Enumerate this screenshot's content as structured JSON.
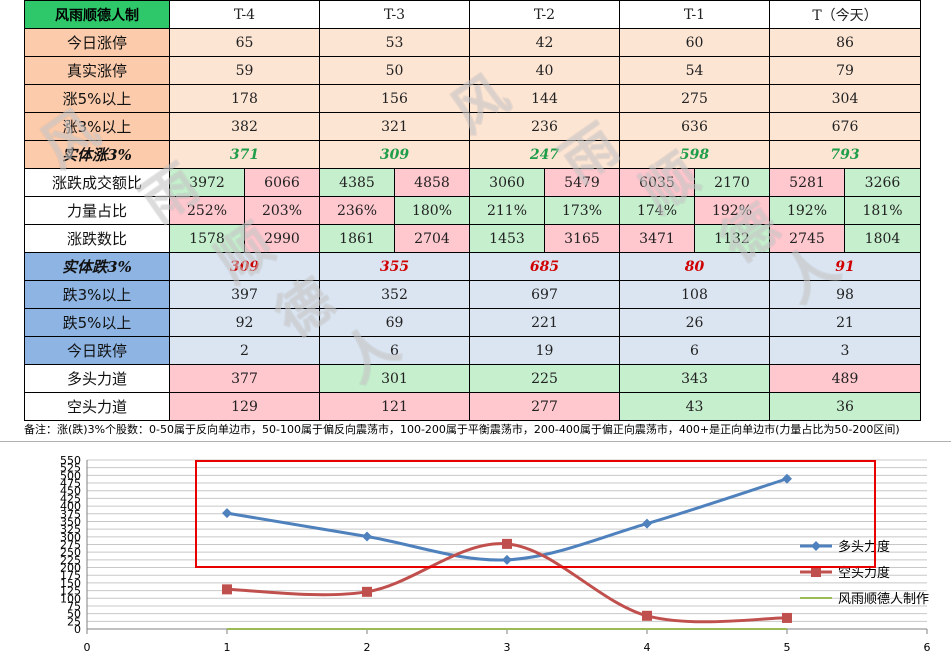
{
  "sheet": {
    "corner": "风雨顺德人制",
    "columns": [
      "T-4",
      "T-3",
      "T-2",
      "T-1",
      "T（今天）"
    ],
    "rows": {
      "zt": {
        "label": "今日涨停",
        "values": [
          "65",
          "53",
          "42",
          "60",
          "86"
        ]
      },
      "real_zt": {
        "label": "真实涨停",
        "values": [
          "59",
          "50",
          "40",
          "54",
          "79"
        ]
      },
      "up5": {
        "label": "涨5%以上",
        "values": [
          "178",
          "156",
          "144",
          "275",
          "304"
        ]
      },
      "up3": {
        "label": "涨3%以上",
        "values": [
          "382",
          "321",
          "236",
          "636",
          "676"
        ]
      },
      "sz3": {
        "label": "实体涨3%",
        "values": [
          "371",
          "309",
          "247",
          "598",
          "793"
        ]
      },
      "amount": {
        "label": "涨跌成交额比",
        "values": [
          [
            "3972",
            "6066"
          ],
          [
            "4385",
            "4858"
          ],
          [
            "3060",
            "5479"
          ],
          [
            "6035",
            "2170"
          ],
          [
            "5281",
            "3266"
          ]
        ]
      },
      "power": {
        "label": "力量占比",
        "values": [
          [
            "252%",
            "203%"
          ],
          [
            "236%",
            "180%"
          ],
          [
            "211%",
            "173%"
          ],
          [
            "174%",
            "192%"
          ],
          [
            "192%",
            "181%"
          ]
        ]
      },
      "count": {
        "label": "涨跌数比",
        "values": [
          [
            "1578",
            "2990"
          ],
          [
            "1861",
            "2704"
          ],
          [
            "1453",
            "3165"
          ],
          [
            "3471",
            "1132"
          ],
          [
            "2745",
            "1804"
          ]
        ]
      },
      "sd3": {
        "label": "实体跌3%",
        "values": [
          "309",
          "355",
          "685",
          "80",
          "91"
        ]
      },
      "down3": {
        "label": "跌3%以上",
        "values": [
          "397",
          "352",
          "697",
          "108",
          "98"
        ]
      },
      "down5": {
        "label": "跌5%以上",
        "values": [
          "92",
          "69",
          "221",
          "26",
          "21"
        ]
      },
      "dt": {
        "label": "今日跌停",
        "values": [
          "2",
          "6",
          "19",
          "6",
          "3"
        ]
      },
      "bull": {
        "label": "多头力道",
        "values": [
          "377",
          "301",
          "225",
          "343",
          "489"
        ]
      },
      "bear": {
        "label": "空头力道",
        "values": [
          "129",
          "121",
          "277",
          "43",
          "36"
        ]
      }
    },
    "note": "备注：涨(跌)3%个股数：0-50属于反向单边市，50-100属于偏反向震荡市，100-200属于平衡震荡市，200-400属于偏正向震荡市，400+是正向单边市(力量占比为50-200区间)"
  },
  "watermark": {
    "chars": [
      "风",
      "雨",
      "顺",
      "德",
      "人",
      "风",
      "雨",
      "顺",
      "德",
      "人"
    ]
  },
  "colors": {
    "bull": "#4f81bd",
    "bear": "#c0504d",
    "maker": "#9bbb59",
    "highlight": "#e80000"
  },
  "chart_data": {
    "type": "line",
    "x": [
      1,
      2,
      3,
      4,
      5
    ],
    "xlim": [
      0,
      6
    ],
    "ylim": [
      0,
      550
    ],
    "xticks": [
      "0",
      "1",
      "2",
      "3",
      "4",
      "5",
      "6"
    ],
    "yticks": [
      "0",
      "25",
      "50",
      "75",
      "100",
      "125",
      "150",
      "175",
      "200",
      "225",
      "250",
      "275",
      "300",
      "325",
      "350",
      "375",
      "400",
      "425",
      "450",
      "475",
      "500",
      "525",
      "550"
    ],
    "grid": true,
    "legend_position": "right",
    "series": [
      {
        "name": "多头力度",
        "values": [
          377,
          301,
          225,
          343,
          489
        ],
        "marker": "diamond",
        "smooth": true
      },
      {
        "name": "空头力度",
        "values": [
          129,
          121,
          277,
          43,
          36
        ],
        "marker": "square",
        "smooth": true
      },
      {
        "name": "风雨顺德人制作",
        "values": [
          0,
          0,
          0,
          0,
          0
        ],
        "marker": "none",
        "smooth": false
      }
    ],
    "annotation": "highlight-rectangle"
  }
}
